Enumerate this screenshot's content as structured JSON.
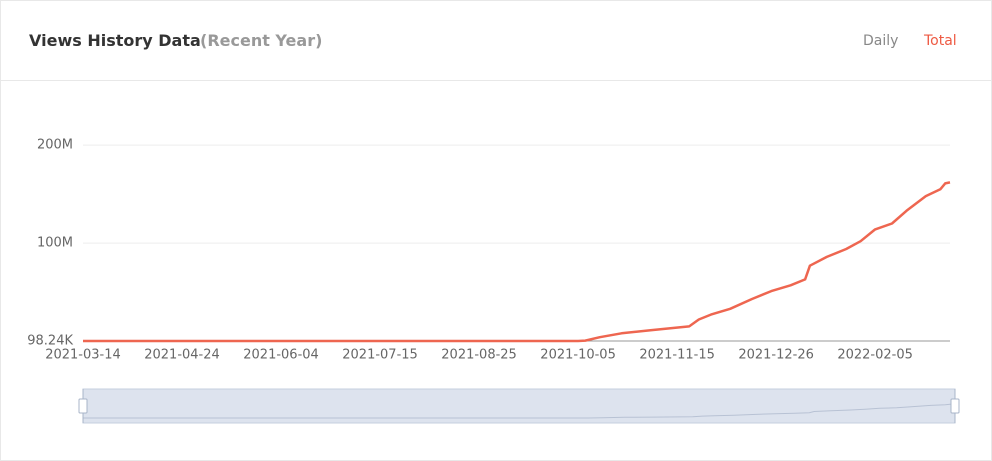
{
  "header": {
    "title": "Views History Data",
    "subtitle": "(Recent Year)",
    "tabs": [
      "Daily",
      "Total"
    ],
    "active_tab": 1
  },
  "chart_data": {
    "type": "line",
    "x": [
      "2021-03-14",
      "2021-05-01",
      "2021-07-01",
      "2021-09-01",
      "2021-10-05",
      "2021-10-08",
      "2021-10-14",
      "2021-10-23",
      "2021-11-04",
      "2021-11-20",
      "2021-11-24",
      "2021-11-29",
      "2021-12-07",
      "2021-12-16",
      "2021-12-24",
      "2022-01-01",
      "2022-01-07",
      "2022-01-09",
      "2022-01-16",
      "2022-01-24",
      "2022-01-30",
      "2022-02-05",
      "2022-02-12",
      "2022-02-18",
      "2022-02-26",
      "2022-03-04",
      "2022-03-06",
      "2022-03-08"
    ],
    "series": [
      {
        "name": "Total",
        "color": "#ee6650",
        "values": [
          98240,
          98240,
          98240,
          98240,
          98240,
          500000,
          4000000,
          8000000,
          11000000,
          15000000,
          22000000,
          27000000,
          33000000,
          43000000,
          51000000,
          57000000,
          63000000,
          77000000,
          86000000,
          94000000,
          102000000,
          114000000,
          120000000,
          133000000,
          148000000,
          155000000,
          161000000,
          162000000
        ]
      }
    ],
    "xlim": [
      "2021-03-14",
      "2022-03-08"
    ],
    "xticks": [
      "2021-03-14",
      "2021-04-24",
      "2021-06-04",
      "2021-07-15",
      "2021-08-25",
      "2021-10-05",
      "2021-11-15",
      "2021-12-26",
      "2022-02-05"
    ],
    "ylim": [
      98240,
      240000000
    ],
    "yticks": [
      {
        "value": 98240,
        "label": "98.24K"
      },
      {
        "value": 100000000,
        "label": "100M"
      },
      {
        "value": 200000000,
        "label": "200M"
      }
    ],
    "grid": true,
    "slider": true
  }
}
